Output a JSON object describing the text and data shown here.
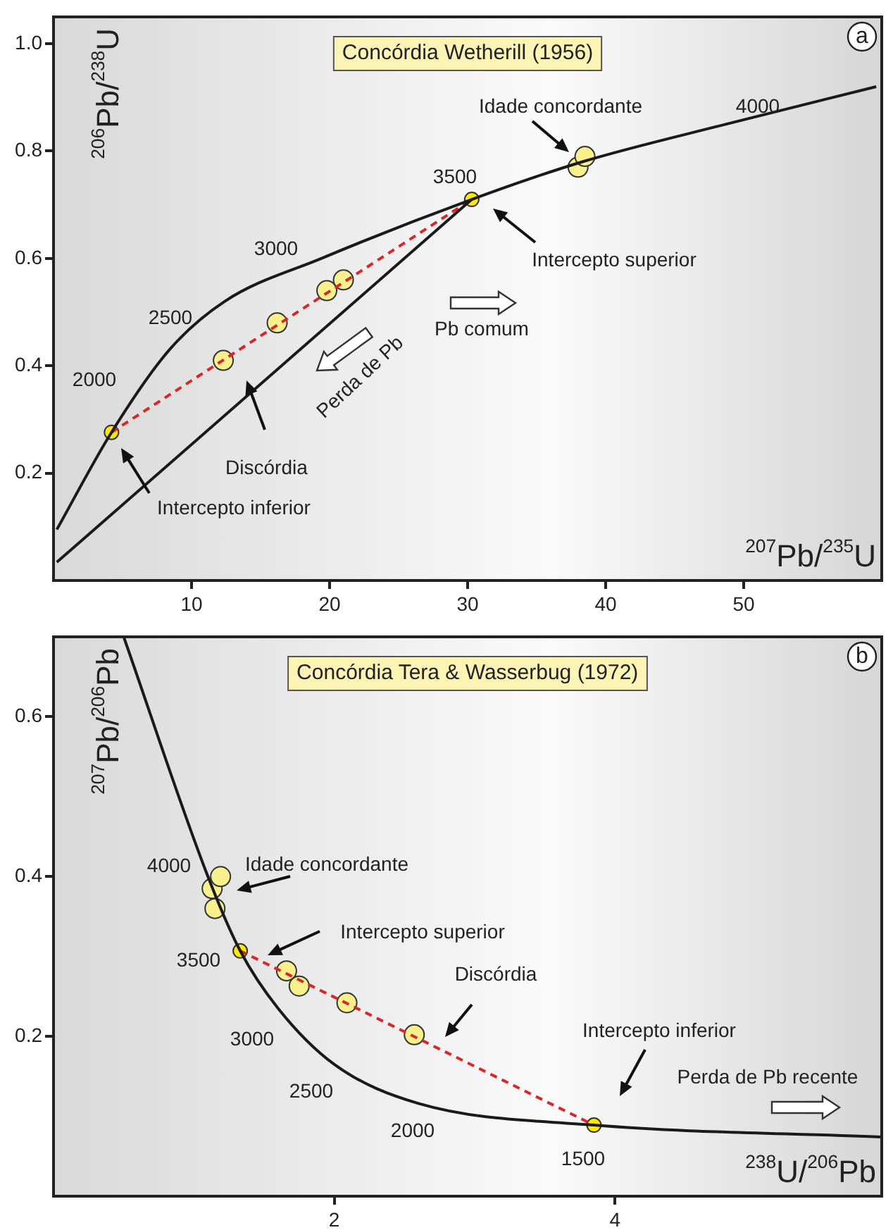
{
  "chart_data": [
    {
      "type": "line",
      "title": "Concórdia Wetherill (1956)",
      "xlabel": "$^{207}$Pb/$^{235}$U",
      "ylabel": "$^{206}$Pb/$^{238}$U",
      "xlim": [
        0,
        60
      ],
      "xticks": [
        10,
        20,
        30,
        40,
        50
      ],
      "ylim": [
        0,
        1.05
      ],
      "yticks": [
        0.2,
        0.4,
        0.6,
        0.8,
        {
          "value": 1,
          "label": "1.0"
        }
      ],
      "series": [
        {
          "type": "line",
          "color": "#1a1a1a",
          "x": [
            0.24,
            4.2,
            8.4,
            12.4,
            19.4,
            30.3,
            38.3,
            48.7,
            59.6
          ],
          "values": [
            0.095,
            0.276,
            0.43,
            0.52,
            0.6,
            0.71,
            0.78,
            0.85,
            0.92
          ],
          "marker": "none"
        },
        {
          "type": "line",
          "color": "#1a1a1a",
          "x": [
            0.24,
            30.3
          ],
          "values": [
            0.034,
            0.71
          ],
          "marker": "none"
        },
        {
          "type": "line",
          "color": "#d62828",
          "x": [
            4.2,
            30.3
          ],
          "values": [
            0.276,
            0.71
          ],
          "marker": "none",
          "line_style": "dashed"
        },
        {
          "type": "scatter",
          "color": "#f7f08c",
          "x": [
            12.3,
            16.2,
            19.8,
            21.0,
            38.0,
            38.5
          ],
          "values": [
            0.41,
            0.48,
            0.54,
            0.56,
            0.77,
            0.79
          ],
          "marker": "circle"
        },
        {
          "type": "scatter",
          "color": "#ffea00",
          "x": [
            4.2,
            30.3
          ],
          "values": [
            0.276,
            0.71
          ],
          "marker": "circle"
        }
      ],
      "annotations": [
        "a",
        "2000",
        "2500",
        "3000",
        "3500",
        "4000",
        "Idade concordante",
        "Intercepto superior",
        "Pb comum",
        "Perda de Pb",
        {
          "text": "Discórdia",
          "x": 13.9,
          "y": 0.34
        },
        "Intercepto inferior"
      ]
    },
    {
      "type": "line",
      "title": "Concórdia Tera & Wasserbug (1972)",
      "xlabel": "$^{238}$U/$^{206}$Pb",
      "ylabel": "$^{207}$Pb/$^{206}$Pb",
      "xlim": [
        0,
        5.9
      ],
      "xticks": [
        2,
        4
      ],
      "ylim": [
        0,
        0.7
      ],
      "yticks": [
        0.2,
        0.4,
        0.6
      ],
      "series": [
        {
          "type": "line",
          "color": "#1a1a1a",
          "x": [
            0.5,
            1.1,
            1.33,
            1.6,
            2.0,
            2.6,
            3.85,
            5.9
          ],
          "values": [
            0.7,
            0.4,
            0.307,
            0.235,
            0.165,
            0.116,
            0.089,
            0.074
          ],
          "marker": "none"
        },
        {
          "type": "line",
          "color": "#d62828",
          "x": [
            1.33,
            3.85
          ],
          "values": [
            0.307,
            0.089
          ],
          "marker": "none",
          "line_style": "dashed"
        },
        {
          "type": "scatter",
          "color": "#f7f08c",
          "x": [
            1.15,
            1.13,
            1.19,
            1.66,
            1.75,
            2.09,
            2.57
          ],
          "values": [
            0.36,
            0.385,
            0.4,
            0.282,
            0.263,
            0.242,
            0.202
          ],
          "marker": "circle"
        },
        {
          "type": "scatter",
          "color": "#ffea00",
          "x": [
            1.33,
            3.85
          ],
          "values": [
            0.307,
            0.089
          ],
          "marker": "circle"
        }
      ],
      "annotations": [
        "b",
        "4000",
        "3500",
        "3000",
        "2500",
        "2000",
        "1500",
        "Idade concordante",
        "Intercepto superior",
        "Discórdia",
        "Intercepto inferior",
        "Perda de Pb recente"
      ]
    }
  ]
}
